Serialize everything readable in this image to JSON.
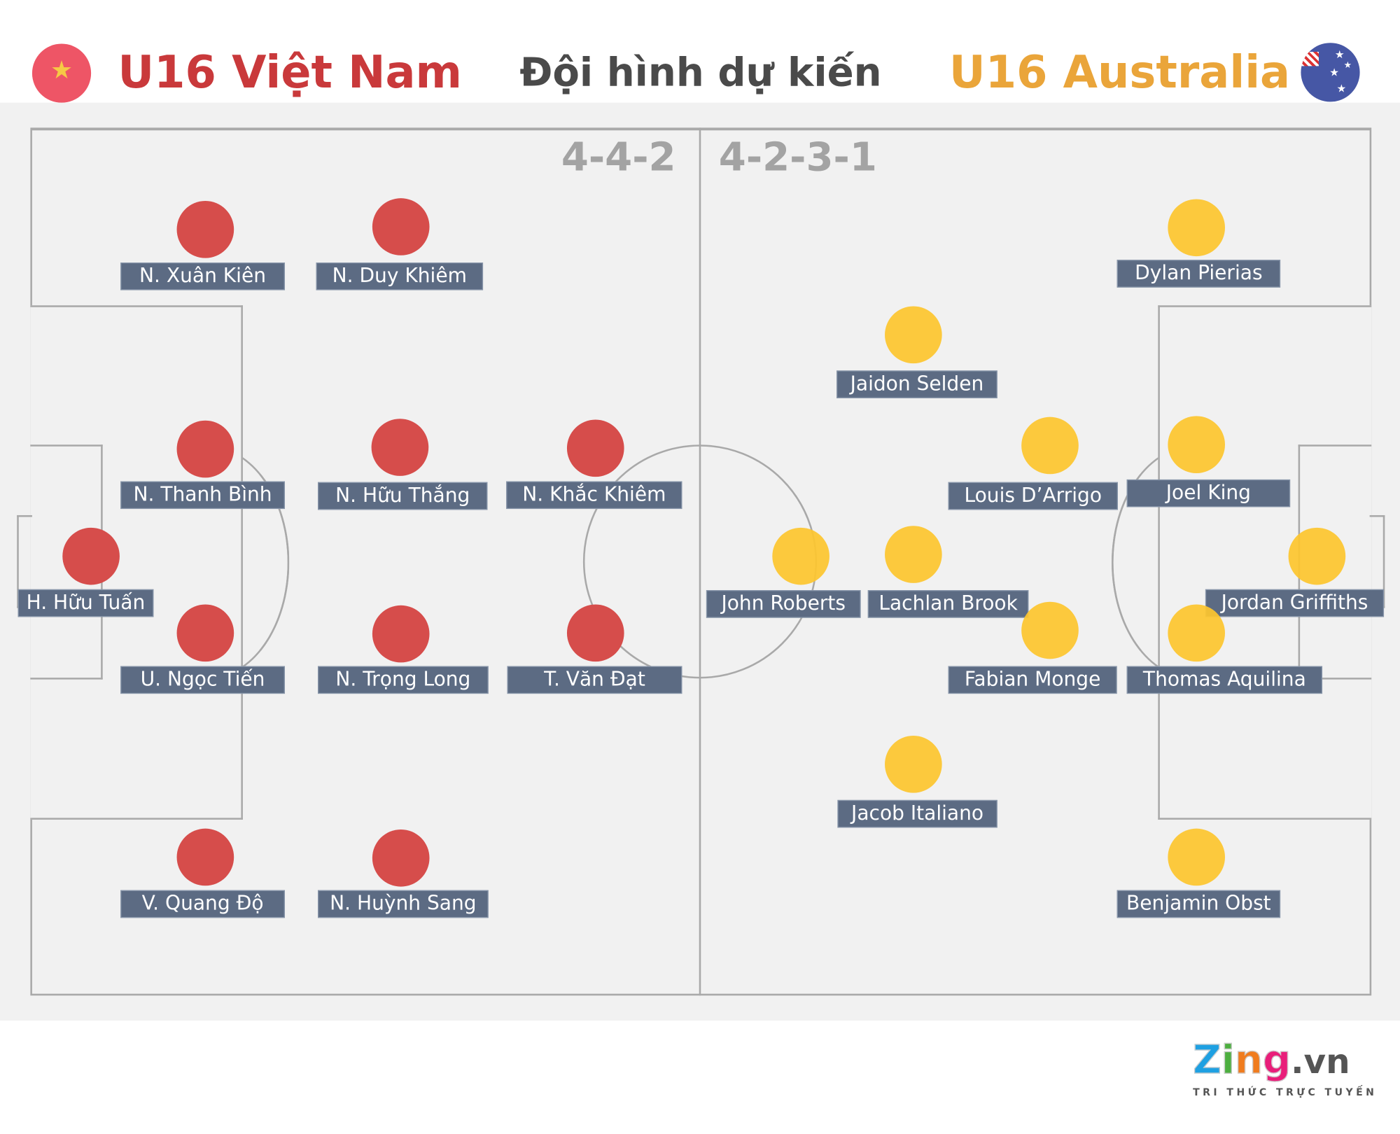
{
  "header": {
    "home_team": "U16 Việt Nam",
    "title": "Đội hình dự kiến",
    "away_team": "U16 Australia"
  },
  "colors": {
    "home": "#c9393b",
    "away": "#eaa53a",
    "home_dot": "#d64d4b",
    "away_dot": "#fdc62f",
    "label_bg": "#5c6b83"
  },
  "icons": {
    "home_flag": "vietnam-flag-icon",
    "away_flag": "australia-flag-icon"
  },
  "formations": {
    "home": "4-4-2",
    "away": "4-2-3-1"
  },
  "home_players": [
    "N. Xuân Kiên",
    "N. Duy Khiêm",
    "N. Thanh Bình",
    "N. Hữu Thắng",
    "N. Khắc Khiêm",
    "H. Hữu Tuấn",
    "U. Ngọc Tiến",
    "N. Trọng Long",
    "T. Văn Đạt",
    "V. Quang Độ",
    "N. Huỳnh Sang"
  ],
  "away_players": [
    "Dylan Pierias",
    "Jaidon Selden",
    "Louis D’Arrigo",
    "Joel King",
    "John Roberts",
    "Lachlan Brook",
    "Jordan Griffiths",
    "Fabian Monge",
    "Thomas Aquilina",
    "Jacob Italiano",
    "Benjamin Obst"
  ],
  "logo": {
    "brand": "Zing",
    "suffix": ".vn",
    "tagline": "TRI THỨC TRỰC TUYẾN"
  }
}
